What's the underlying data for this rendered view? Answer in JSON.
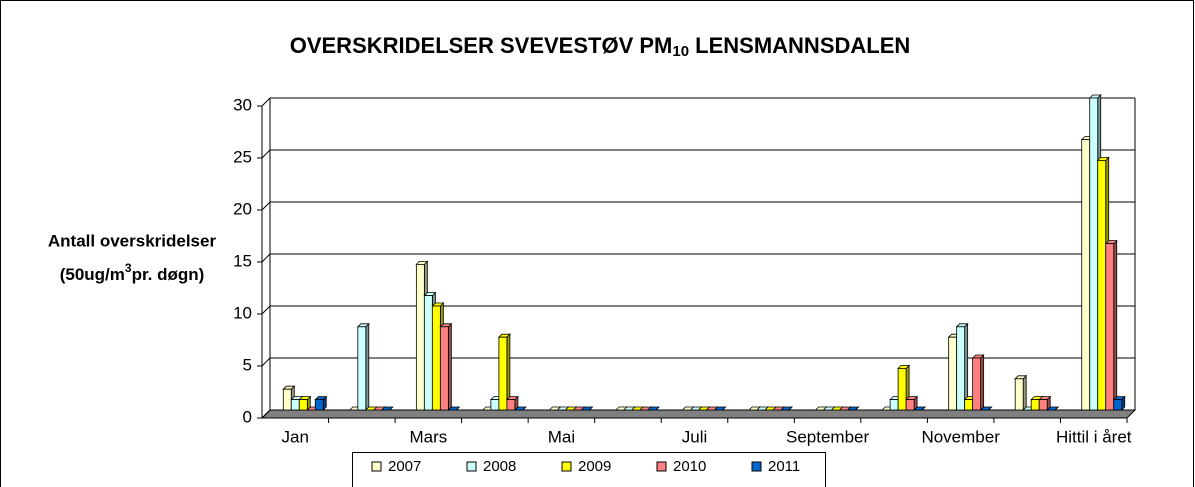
{
  "chart_data": {
    "type": "bar",
    "title_parts": [
      "OVERSKRIDELSER SVEVESTØV PM",
      "10",
      " LENSMANNSDALEN"
    ],
    "ylabel_line1": "Antall overskridelser",
    "ylabel_line2_parts": [
      "(50ug/m",
      "3",
      "pr. døgn)"
    ],
    "categories": [
      "Jan",
      null,
      "Mars",
      null,
      "Mai",
      null,
      "Juli",
      null,
      "September",
      null,
      "November",
      null,
      "Hittil i året"
    ],
    "series": [
      {
        "name": "2007",
        "color": "#ffffcc",
        "values": [
          2,
          0,
          14,
          0,
          0,
          0,
          0,
          0,
          0,
          0,
          7,
          3,
          26
        ]
      },
      {
        "name": "2008",
        "color": "#ccffff",
        "values": [
          1,
          8,
          11,
          1,
          0,
          0,
          0,
          0,
          0,
          1,
          8,
          0,
          30
        ]
      },
      {
        "name": "2009",
        "color": "#ffff00",
        "values": [
          1,
          0,
          10,
          7,
          0,
          0,
          0,
          0,
          0,
          4,
          1,
          1,
          24
        ]
      },
      {
        "name": "2010",
        "color": "#ff8080",
        "values": [
          0,
          0,
          8,
          1,
          0,
          0,
          0,
          0,
          0,
          1,
          5,
          1,
          16
        ]
      },
      {
        "name": "2011",
        "color": "#0066cc",
        "values": [
          1,
          0,
          0,
          0,
          0,
          0,
          0,
          0,
          0,
          0,
          0,
          0,
          1
        ]
      }
    ],
    "ylim": [
      0,
      30
    ],
    "yticks": [
      0,
      5,
      10,
      15,
      20,
      25,
      30
    ],
    "grid": true
  }
}
